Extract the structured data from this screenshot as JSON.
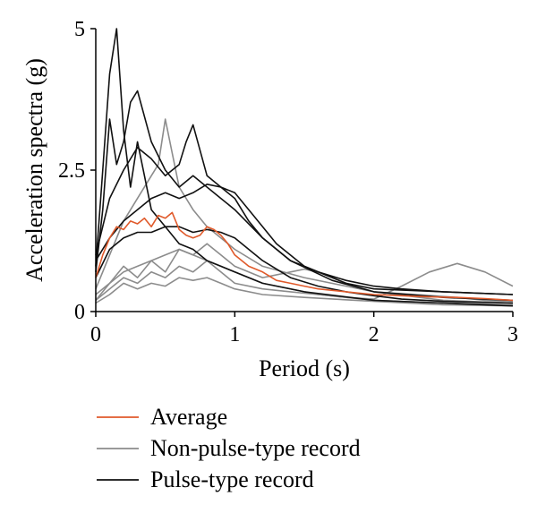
{
  "chart_data": {
    "type": "line",
    "title": "",
    "xlabel": "Period (s)",
    "ylabel": "Acceleration spectra (g)",
    "xlim": [
      0,
      3
    ],
    "ylim": [
      0,
      5
    ],
    "xticks": [
      "0",
      "1",
      "2",
      "3"
    ],
    "yticks": [
      "0",
      "2.5",
      "5"
    ],
    "grid": false,
    "legend_position": "bottom-left",
    "series": [
      {
        "name": "Average",
        "color": "#e05a2b",
        "width": 1.6,
        "group": "average",
        "x": [
          0,
          0.05,
          0.1,
          0.15,
          0.2,
          0.25,
          0.3,
          0.35,
          0.4,
          0.45,
          0.5,
          0.55,
          0.6,
          0.65,
          0.7,
          0.75,
          0.8,
          0.85,
          0.9,
          0.95,
          1.0,
          1.1,
          1.2,
          1.3,
          1.4,
          1.5,
          1.6,
          1.8,
          2.0,
          2.2,
          2.4,
          2.6,
          2.8,
          3.0
        ],
        "y": [
          0.6,
          1.0,
          1.3,
          1.5,
          1.45,
          1.6,
          1.55,
          1.65,
          1.5,
          1.7,
          1.65,
          1.75,
          1.45,
          1.35,
          1.3,
          1.35,
          1.5,
          1.45,
          1.35,
          1.2,
          1.0,
          0.8,
          0.7,
          0.55,
          0.5,
          0.45,
          0.4,
          0.35,
          0.3,
          0.28,
          0.26,
          0.25,
          0.23,
          0.2
        ]
      },
      {
        "name": "Pulse-type record",
        "color": "#111111",
        "width": 1.6,
        "group": "pulse",
        "x": [
          0,
          0.05,
          0.1,
          0.15,
          0.2,
          0.25,
          0.3,
          0.35,
          0.4,
          0.5,
          0.6,
          0.7,
          0.8,
          0.9,
          1.0,
          1.2,
          1.5,
          2.0,
          2.5,
          3.0
        ],
        "y": [
          0.8,
          2.5,
          4.2,
          5.0,
          3.2,
          2.2,
          3.0,
          2.4,
          1.8,
          1.5,
          1.2,
          1.1,
          0.9,
          0.8,
          0.7,
          0.5,
          0.35,
          0.2,
          0.15,
          0.1
        ]
      },
      {
        "name": "",
        "color": "#111111",
        "width": 1.6,
        "group": "pulse",
        "x": [
          0,
          0.05,
          0.1,
          0.15,
          0.2,
          0.25,
          0.3,
          0.4,
          0.5,
          0.6,
          0.7,
          0.8,
          0.9,
          1.0,
          1.2,
          1.4,
          1.7,
          2.0,
          2.5,
          3.0
        ],
        "y": [
          0.7,
          1.8,
          3.4,
          2.6,
          3.0,
          3.7,
          3.9,
          3.0,
          2.5,
          2.2,
          2.4,
          2.2,
          2.0,
          1.8,
          1.3,
          0.9,
          0.55,
          0.35,
          0.25,
          0.2
        ]
      },
      {
        "name": "",
        "color": "#111111",
        "width": 1.6,
        "group": "pulse",
        "x": [
          0,
          0.1,
          0.2,
          0.3,
          0.4,
          0.5,
          0.6,
          0.65,
          0.7,
          0.8,
          0.9,
          1.0,
          1.1,
          1.3,
          1.5,
          1.8,
          2.0,
          2.5,
          3.0
        ],
        "y": [
          1.0,
          2.0,
          2.5,
          2.9,
          2.7,
          2.4,
          2.6,
          3.0,
          3.3,
          2.4,
          2.2,
          2.1,
          1.8,
          1.2,
          0.8,
          0.5,
          0.4,
          0.35,
          0.3
        ]
      },
      {
        "name": "",
        "color": "#111111",
        "width": 1.6,
        "group": "pulse",
        "x": [
          0,
          0.1,
          0.2,
          0.3,
          0.4,
          0.5,
          0.6,
          0.7,
          0.8,
          0.9,
          1.0,
          1.1,
          1.2,
          1.4,
          1.6,
          1.8,
          2.0,
          2.2,
          2.5,
          3.0
        ],
        "y": [
          0.9,
          1.3,
          1.6,
          1.8,
          2.0,
          2.1,
          2.0,
          2.1,
          2.25,
          2.2,
          2.0,
          1.6,
          1.3,
          0.9,
          0.7,
          0.55,
          0.45,
          0.4,
          0.35,
          0.3
        ]
      },
      {
        "name": "",
        "color": "#111111",
        "width": 1.6,
        "group": "pulse",
        "x": [
          0,
          0.1,
          0.2,
          0.3,
          0.4,
          0.5,
          0.6,
          0.7,
          0.8,
          0.9,
          1.0,
          1.1,
          1.2,
          1.4,
          1.6,
          1.8,
          2.0,
          2.2,
          2.5,
          3.0
        ],
        "y": [
          0.6,
          1.1,
          1.3,
          1.4,
          1.4,
          1.5,
          1.5,
          1.4,
          1.45,
          1.4,
          1.3,
          1.1,
          0.9,
          0.6,
          0.45,
          0.35,
          0.28,
          0.22,
          0.18,
          0.15
        ]
      },
      {
        "name": "Non-pulse-type record",
        "color": "#8c8c8c",
        "width": 1.6,
        "group": "nonpulse",
        "x": [
          0,
          0.1,
          0.2,
          0.3,
          0.4,
          0.45,
          0.5,
          0.55,
          0.6,
          0.7,
          0.8,
          0.9,
          1.0,
          1.2,
          1.5,
          1.8,
          2.0,
          2.3,
          2.6,
          2.8,
          3.0
        ],
        "y": [
          0.4,
          1.0,
          1.6,
          2.0,
          2.4,
          2.6,
          3.4,
          2.8,
          2.2,
          1.8,
          1.5,
          1.3,
          1.1,
          0.8,
          0.6,
          0.45,
          0.35,
          0.3,
          0.25,
          0.2,
          0.18
        ]
      },
      {
        "name": "",
        "color": "#8c8c8c",
        "width": 1.6,
        "group": "nonpulse",
        "x": [
          0,
          0.1,
          0.2,
          0.3,
          0.4,
          0.5,
          0.6,
          0.7,
          0.8,
          0.9,
          1.0,
          1.2,
          1.4,
          1.6,
          1.8,
          2.0,
          2.2,
          2.4,
          2.6,
          2.8,
          3.0
        ],
        "y": [
          0.3,
          0.5,
          0.7,
          0.8,
          0.9,
          1.0,
          1.1,
          1.0,
          0.9,
          0.8,
          0.7,
          0.5,
          0.4,
          0.3,
          0.25,
          0.22,
          0.45,
          0.7,
          0.85,
          0.7,
          0.45
        ]
      },
      {
        "name": "",
        "color": "#8c8c8c",
        "width": 1.6,
        "group": "nonpulse",
        "x": [
          0,
          0.1,
          0.2,
          0.3,
          0.4,
          0.5,
          0.6,
          0.7,
          0.8,
          0.9,
          1.0,
          1.2,
          1.4,
          1.5,
          1.6,
          1.8,
          2.0,
          2.5,
          3.0
        ],
        "y": [
          0.2,
          0.5,
          0.8,
          0.6,
          0.9,
          0.7,
          1.1,
          1.0,
          1.2,
          1.0,
          0.8,
          0.6,
          0.7,
          0.75,
          0.7,
          0.5,
          0.35,
          0.2,
          0.15
        ]
      },
      {
        "name": "",
        "color": "#8c8c8c",
        "width": 1.6,
        "group": "nonpulse",
        "x": [
          0,
          0.1,
          0.2,
          0.3,
          0.4,
          0.5,
          0.6,
          0.7,
          0.8,
          0.9,
          1.0,
          1.2,
          1.4,
          1.6,
          2.0,
          2.5,
          3.0
        ],
        "y": [
          0.2,
          0.4,
          0.6,
          0.5,
          0.7,
          0.6,
          0.8,
          0.7,
          0.9,
          0.7,
          0.5,
          0.4,
          0.35,
          0.3,
          0.2,
          0.15,
          0.12
        ]
      },
      {
        "name": "",
        "color": "#8c8c8c",
        "width": 1.6,
        "group": "nonpulse",
        "x": [
          0,
          0.1,
          0.2,
          0.3,
          0.4,
          0.5,
          0.6,
          0.7,
          0.8,
          0.9,
          1.0,
          1.2,
          1.5,
          2.0,
          2.5,
          3.0
        ],
        "y": [
          0.15,
          0.3,
          0.5,
          0.4,
          0.5,
          0.45,
          0.6,
          0.55,
          0.6,
          0.5,
          0.4,
          0.3,
          0.25,
          0.18,
          0.12,
          0.1
        ]
      }
    ]
  },
  "legend": {
    "items": [
      {
        "label": "Average",
        "color": "#e05a2b"
      },
      {
        "label": "Non-pulse-type record",
        "color": "#8c8c8c"
      },
      {
        "label": "Pulse-type record",
        "color": "#111111"
      }
    ]
  }
}
